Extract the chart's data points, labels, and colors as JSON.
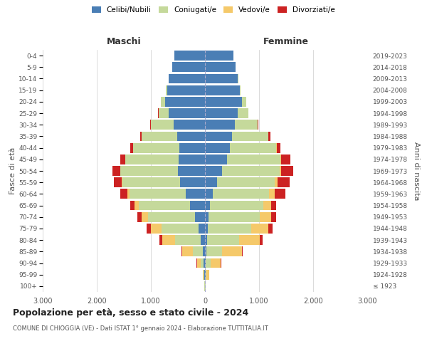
{
  "age_groups": [
    "100+",
    "95-99",
    "90-94",
    "85-89",
    "80-84",
    "75-79",
    "70-74",
    "65-69",
    "60-64",
    "55-59",
    "50-54",
    "45-49",
    "40-44",
    "35-39",
    "30-34",
    "25-29",
    "20-24",
    "15-19",
    "10-14",
    "5-9",
    "0-4"
  ],
  "birth_years": [
    "≤ 1923",
    "1924-1928",
    "1929-1933",
    "1934-1938",
    "1939-1943",
    "1944-1948",
    "1949-1953",
    "1954-1958",
    "1959-1963",
    "1964-1968",
    "1969-1973",
    "1974-1978",
    "1979-1983",
    "1984-1988",
    "1989-1993",
    "1994-1998",
    "1999-2003",
    "2004-2008",
    "2009-2013",
    "2014-2018",
    "2019-2023"
  ],
  "colors": {
    "celibi": "#4a7eb5",
    "coniugati": "#c5d99b",
    "vedovi": "#f5c96a",
    "divorziati": "#cc2222"
  },
  "males": {
    "celibi": [
      5,
      10,
      20,
      40,
      75,
      120,
      190,
      270,
      360,
      460,
      500,
      490,
      470,
      510,
      580,
      670,
      740,
      700,
      670,
      610,
      570
    ],
    "coniugati": [
      3,
      12,
      55,
      190,
      480,
      680,
      860,
      960,
      1040,
      1060,
      1060,
      980,
      860,
      660,
      420,
      190,
      75,
      18,
      3,
      0,
      0
    ],
    "vedovi": [
      2,
      18,
      75,
      190,
      240,
      195,
      125,
      75,
      38,
      18,
      8,
      4,
      3,
      0,
      0,
      0,
      0,
      0,
      0,
      0,
      0
    ],
    "divorziati": [
      0,
      0,
      4,
      18,
      48,
      78,
      78,
      78,
      125,
      145,
      148,
      98,
      48,
      28,
      13,
      4,
      0,
      0,
      0,
      0,
      0
    ]
  },
  "females": {
    "celibi": [
      4,
      8,
      12,
      22,
      38,
      48,
      68,
      88,
      148,
      225,
      320,
      410,
      460,
      500,
      550,
      610,
      690,
      640,
      610,
      560,
      520
    ],
    "coniugati": [
      4,
      18,
      88,
      290,
      590,
      810,
      940,
      990,
      1040,
      1060,
      1060,
      980,
      855,
      665,
      420,
      190,
      75,
      18,
      3,
      0,
      0
    ],
    "vedovi": [
      8,
      55,
      195,
      370,
      390,
      315,
      215,
      145,
      98,
      58,
      28,
      18,
      8,
      4,
      0,
      0,
      0,
      0,
      0,
      0,
      0
    ],
    "divorziati": [
      0,
      0,
      4,
      18,
      48,
      78,
      98,
      98,
      195,
      225,
      225,
      165,
      78,
      48,
      18,
      4,
      0,
      0,
      0,
      0,
      0
    ]
  },
  "title": "Popolazione per età, sesso e stato civile - 2024",
  "subtitle": "COMUNE DI CHIOGGIA (VE) - Dati ISTAT 1° gennaio 2024 - Elaborazione TUTTITALIA.IT",
  "xlabel_left": "Maschi",
  "xlabel_right": "Femmine",
  "ylabel_left": "Fasce di età",
  "ylabel_right": "Anni di nascita",
  "legend_labels": [
    "Celibi/Nubili",
    "Coniugati/e",
    "Vedovi/e",
    "Divorziati/e"
  ],
  "xlim": 3000,
  "background_color": "#ffffff",
  "grid_color": "#cccccc"
}
